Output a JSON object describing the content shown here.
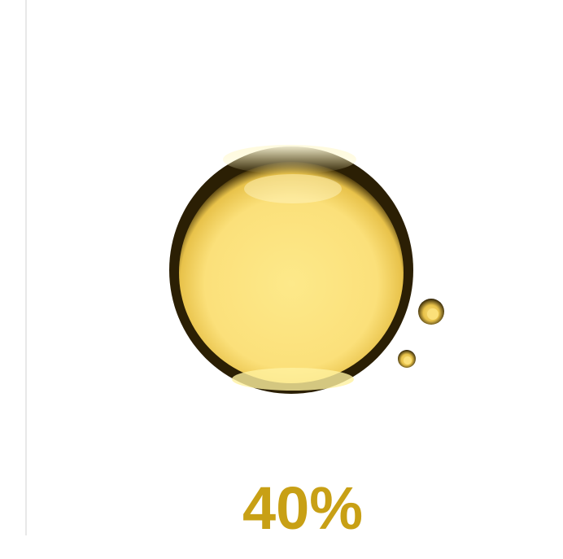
{
  "stat": {
    "label": "40%"
  }
}
